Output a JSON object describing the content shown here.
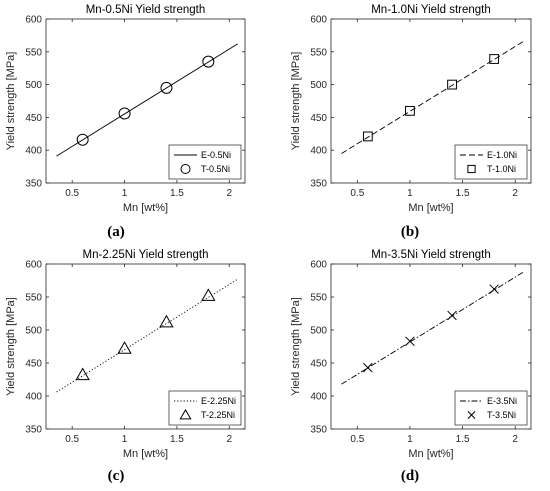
{
  "chart_data": [
    {
      "type": "line",
      "panel_label": "(a)",
      "title": "Mn-0.5Ni Yield strength",
      "xlabel": "Mn [wt%]",
      "ylabel": "Yield strength [MPa]",
      "xlim": [
        0.25,
        2.15
      ],
      "ylim": [
        350,
        600
      ],
      "xticks": [
        "0.5",
        "1",
        "1.5",
        "2"
      ],
      "yticks": [
        "350",
        "400",
        "450",
        "500",
        "550",
        "600"
      ],
      "line_series": {
        "name": "E-0.5Ni",
        "style": "solid",
        "x": [
          0.35,
          2.08
        ],
        "y": [
          391,
          562
        ]
      },
      "marker_series": {
        "name": "T-0.5Ni",
        "marker": "circle",
        "x": [
          0.6,
          1.0,
          1.4,
          1.8
        ],
        "y": [
          416,
          456,
          495,
          535
        ]
      },
      "legend_position": "bottom-right"
    },
    {
      "type": "line",
      "panel_label": "(b)",
      "title": "Mn-1.0Ni Yield strength",
      "xlabel": "Mn [wt%]",
      "ylabel": "Yield strength [MPa]",
      "xlim": [
        0.25,
        2.15
      ],
      "ylim": [
        350,
        600
      ],
      "xticks": [
        "0.5",
        "1",
        "1.5",
        "2"
      ],
      "yticks": [
        "350",
        "400",
        "450",
        "500",
        "550",
        "600"
      ],
      "line_series": {
        "name": "E-1.0Ni",
        "style": "dashed",
        "x": [
          0.35,
          2.08
        ],
        "y": [
          395,
          566
        ]
      },
      "marker_series": {
        "name": "T-1.0Ni",
        "marker": "square",
        "x": [
          0.6,
          1.0,
          1.4,
          1.8
        ],
        "y": [
          421,
          460,
          500,
          539
        ]
      },
      "legend_position": "bottom-right"
    },
    {
      "type": "line",
      "panel_label": "(c)",
      "title": "Mn-2.25Ni Yield strength",
      "xlabel": "Mn [wt%]",
      "ylabel": "Yield strength [MPa]",
      "xlim": [
        0.25,
        2.15
      ],
      "ylim": [
        350,
        600
      ],
      "xticks": [
        "0.5",
        "1",
        "1.5",
        "2"
      ],
      "yticks": [
        "350",
        "400",
        "450",
        "500",
        "550",
        "600"
      ],
      "line_series": {
        "name": "E-2.25Ni",
        "style": "dotted",
        "x": [
          0.35,
          2.08
        ],
        "y": [
          406,
          577
        ]
      },
      "marker_series": {
        "name": "T-2.25Ni",
        "marker": "triangle",
        "x": [
          0.6,
          1.0,
          1.4,
          1.8
        ],
        "y": [
          432,
          472,
          512,
          552
        ]
      },
      "legend_position": "bottom-right"
    },
    {
      "type": "line",
      "panel_label": "(d)",
      "title": "Mn-3.5Ni Yield strength",
      "xlabel": "Mn [wt%]",
      "ylabel": "Yield strength [MPa]",
      "xlim": [
        0.25,
        2.15
      ],
      "ylim": [
        350,
        600
      ],
      "xticks": [
        "0.5",
        "1",
        "1.5",
        "2"
      ],
      "yticks": [
        "350",
        "400",
        "450",
        "500",
        "550",
        "600"
      ],
      "line_series": {
        "name": "E-3.5Ni",
        "style": "dashdot",
        "x": [
          0.35,
          2.08
        ],
        "y": [
          418,
          588
        ]
      },
      "marker_series": {
        "name": "T-3.5Ni",
        "marker": "cross",
        "x": [
          0.6,
          1.0,
          1.4,
          1.8
        ],
        "y": [
          443,
          483,
          522,
          562
        ]
      },
      "legend_position": "bottom-right"
    }
  ]
}
